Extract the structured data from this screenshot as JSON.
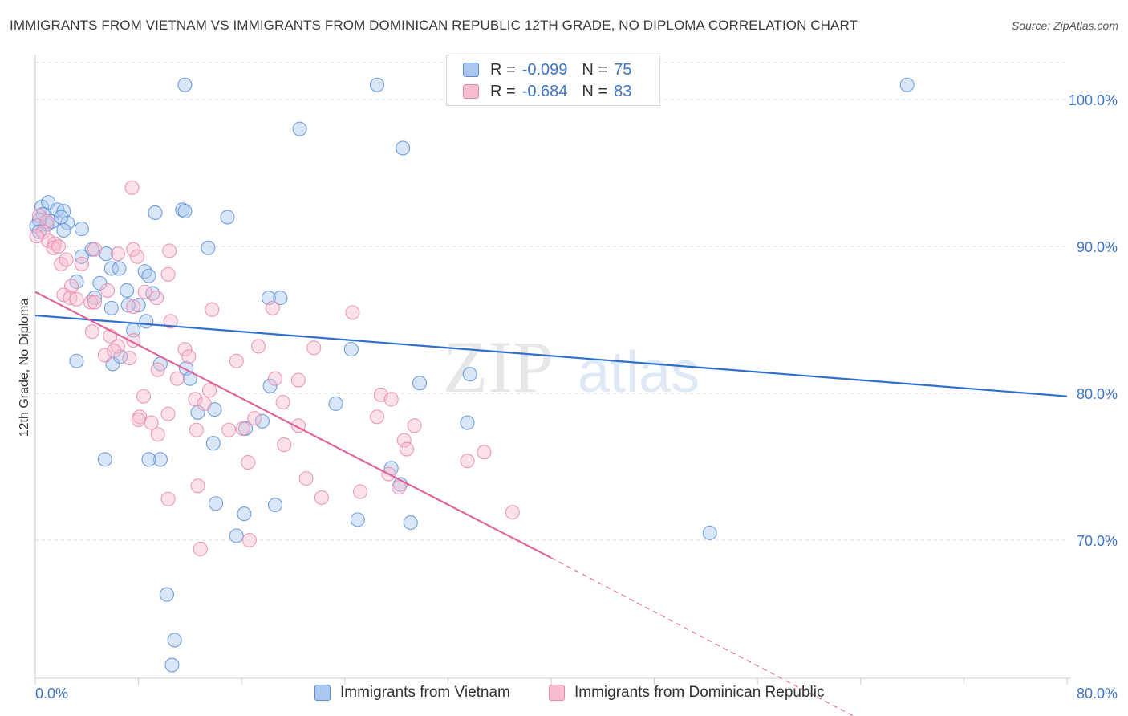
{
  "header": {
    "title": "IMMIGRANTS FROM VIETNAM VS IMMIGRANTS FROM DOMINICAN REPUBLIC 12TH GRADE, NO DIPLOMA CORRELATION CHART",
    "source": "Source: ZipAtlas.com"
  },
  "legend_top": {
    "r_label": "R =",
    "n_label": "N =",
    "series1_r": "-0.099",
    "series1_n": "75",
    "series2_r": "-0.684",
    "series2_n": "83"
  },
  "legend_bottom": {
    "series1": "Immigrants from Vietnam",
    "series2": "Immigrants from Dominican Republic"
  },
  "watermark": {
    "zip": "ZIP",
    "atlas": "atlas"
  },
  "colors": {
    "series1_fill": "#a9c7ef",
    "series1_stroke": "#5b8fd8",
    "series1_line": "#2f6fd0",
    "series2_fill": "#f6bcd0",
    "series2_stroke": "#e889aa",
    "series2_line": "#e0669a",
    "tick_label": "#3d74c4",
    "grid": "#dddddd"
  },
  "chart_data": {
    "type": "scatter",
    "title": "IMMIGRANTS FROM VIETNAM VS IMMIGRANTS FROM DOMINICAN REPUBLIC 12TH GRADE, NO DIPLOMA CORRELATION CHART",
    "xlabel": "",
    "ylabel": "12th Grade, No Diploma",
    "xlim": [
      0,
      80
    ],
    "ylim": [
      60.6,
      103.5
    ],
    "x_tick_labels": [
      "0.0%",
      "80.0%"
    ],
    "y_ticks": [
      70,
      80,
      90,
      100
    ],
    "y_tick_labels": [
      "70.0%",
      "80.0%",
      "90.0%",
      "100.0%"
    ],
    "series": [
      {
        "name": "Immigrants from Vietnam",
        "r": -0.099,
        "n": 75,
        "trend": {
          "x": [
            0,
            80
          ],
          "y": [
            85.3,
            79.8
          ],
          "dash_to": null
        },
        "points": [
          [
            11.6,
            101.0
          ],
          [
            26.5,
            101.0
          ],
          [
            67.6,
            101.0
          ],
          [
            20.5,
            98.0
          ],
          [
            28.5,
            96.7
          ],
          [
            0.5,
            92.7
          ],
          [
            1.0,
            93.0
          ],
          [
            0.6,
            92.2
          ],
          [
            0.9,
            91.5
          ],
          [
            1.3,
            91.7
          ],
          [
            1.7,
            92.5
          ],
          [
            2.2,
            92.4
          ],
          [
            2.5,
            91.6
          ],
          [
            2.2,
            91.1
          ],
          [
            2.0,
            92.0
          ],
          [
            0.3,
            91.8
          ],
          [
            0.1,
            91.4
          ],
          [
            3.6,
            91.2
          ],
          [
            9.3,
            92.3
          ],
          [
            11.4,
            92.5
          ],
          [
            11.6,
            92.4
          ],
          [
            14.9,
            92.0
          ],
          [
            4.4,
            89.8
          ],
          [
            5.5,
            89.5
          ],
          [
            3.6,
            89.3
          ],
          [
            13.4,
            89.9
          ],
          [
            5.9,
            88.5
          ],
          [
            6.5,
            88.5
          ],
          [
            8.5,
            88.3
          ],
          [
            8.8,
            88.0
          ],
          [
            5.0,
            87.5
          ],
          [
            3.2,
            87.6
          ],
          [
            7.1,
            87.0
          ],
          [
            9.1,
            86.8
          ],
          [
            4.6,
            86.5
          ],
          [
            18.1,
            86.5
          ],
          [
            19.0,
            86.5
          ],
          [
            8.0,
            86.0
          ],
          [
            5.9,
            85.8
          ],
          [
            7.2,
            86.0
          ],
          [
            8.6,
            84.9
          ],
          [
            7.6,
            84.3
          ],
          [
            24.5,
            83.0
          ],
          [
            3.2,
            82.2
          ],
          [
            6.0,
            82.0
          ],
          [
            6.6,
            82.5
          ],
          [
            9.7,
            82.0
          ],
          [
            11.7,
            81.7
          ],
          [
            29.8,
            80.7
          ],
          [
            33.7,
            81.3
          ],
          [
            12.0,
            81.0
          ],
          [
            18.2,
            80.5
          ],
          [
            23.3,
            79.3
          ],
          [
            17.6,
            78.1
          ],
          [
            13.9,
            78.9
          ],
          [
            12.6,
            78.7
          ],
          [
            33.5,
            78.0
          ],
          [
            16.3,
            77.6
          ],
          [
            13.8,
            76.6
          ],
          [
            9.7,
            75.5
          ],
          [
            5.4,
            75.5
          ],
          [
            8.8,
            75.5
          ],
          [
            27.6,
            74.9
          ],
          [
            28.3,
            73.8
          ],
          [
            14.0,
            72.5
          ],
          [
            16.2,
            71.8
          ],
          [
            18.6,
            72.4
          ],
          [
            25.0,
            71.4
          ],
          [
            29.1,
            71.2
          ],
          [
            15.6,
            70.3
          ],
          [
            52.3,
            70.5
          ],
          [
            10.2,
            66.3
          ],
          [
            10.8,
            63.2
          ],
          [
            10.6,
            61.5
          ],
          [
            0.3,
            91.0
          ]
        ]
      },
      {
        "name": "Immigrants from Dominican Republic",
        "r": -0.684,
        "n": 83,
        "trend": {
          "x": [
            0,
            40
          ],
          "y": [
            86.9,
            68.8
          ],
          "dash_to": [
            63.5,
            58.0
          ]
        },
        "points": [
          [
            7.5,
            94.0
          ],
          [
            0.3,
            92.1
          ],
          [
            0.9,
            91.7
          ],
          [
            0.6,
            91.0
          ],
          [
            1.0,
            90.4
          ],
          [
            1.5,
            90.2
          ],
          [
            1.4,
            89.9
          ],
          [
            1.8,
            90.0
          ],
          [
            0.1,
            90.7
          ],
          [
            4.6,
            89.8
          ],
          [
            6.4,
            89.5
          ],
          [
            7.6,
            89.8
          ],
          [
            10.4,
            89.7
          ],
          [
            2.0,
            88.8
          ],
          [
            2.4,
            89.1
          ],
          [
            3.6,
            88.8
          ],
          [
            7.9,
            89.3
          ],
          [
            10.3,
            88.1
          ],
          [
            2.8,
            87.3
          ],
          [
            5.6,
            87.0
          ],
          [
            8.5,
            86.9
          ],
          [
            2.2,
            86.7
          ],
          [
            2.7,
            86.5
          ],
          [
            3.2,
            86.4
          ],
          [
            9.4,
            86.5
          ],
          [
            4.3,
            86.2
          ],
          [
            7.6,
            85.9
          ],
          [
            4.6,
            86.2
          ],
          [
            13.7,
            85.7
          ],
          [
            18.4,
            85.8
          ],
          [
            24.6,
            85.5
          ],
          [
            10.5,
            84.9
          ],
          [
            4.4,
            84.2
          ],
          [
            5.8,
            83.9
          ],
          [
            6.4,
            83.2
          ],
          [
            7.6,
            83.6
          ],
          [
            11.6,
            83.0
          ],
          [
            17.3,
            83.2
          ],
          [
            21.6,
            83.1
          ],
          [
            5.4,
            82.6
          ],
          [
            6.1,
            82.9
          ],
          [
            7.3,
            82.4
          ],
          [
            11.9,
            82.5
          ],
          [
            15.6,
            82.2
          ],
          [
            9.5,
            81.6
          ],
          [
            11.0,
            81.0
          ],
          [
            18.6,
            81.0
          ],
          [
            20.4,
            80.9
          ],
          [
            13.5,
            80.2
          ],
          [
            8.4,
            79.8
          ],
          [
            12.4,
            79.6
          ],
          [
            19.2,
            79.4
          ],
          [
            26.8,
            79.9
          ],
          [
            27.6,
            79.6
          ],
          [
            13.1,
            79.3
          ],
          [
            8.1,
            78.4
          ],
          [
            9.0,
            78.0
          ],
          [
            10.3,
            78.6
          ],
          [
            17.0,
            78.3
          ],
          [
            26.5,
            78.4
          ],
          [
            20.4,
            77.8
          ],
          [
            16.1,
            77.6
          ],
          [
            15.0,
            77.5
          ],
          [
            8.0,
            78.2
          ],
          [
            9.5,
            77.2
          ],
          [
            28.6,
            76.8
          ],
          [
            29.4,
            77.8
          ],
          [
            12.5,
            77.5
          ],
          [
            19.3,
            76.5
          ],
          [
            28.8,
            76.2
          ],
          [
            34.8,
            76.0
          ],
          [
            16.5,
            75.3
          ],
          [
            27.4,
            74.5
          ],
          [
            33.5,
            75.4
          ],
          [
            21.0,
            74.2
          ],
          [
            28.2,
            73.6
          ],
          [
            12.6,
            73.7
          ],
          [
            25.2,
            73.3
          ],
          [
            10.3,
            72.8
          ],
          [
            22.2,
            72.9
          ],
          [
            37.0,
            71.9
          ],
          [
            16.6,
            70.0
          ],
          [
            12.8,
            69.4
          ]
        ]
      }
    ]
  }
}
